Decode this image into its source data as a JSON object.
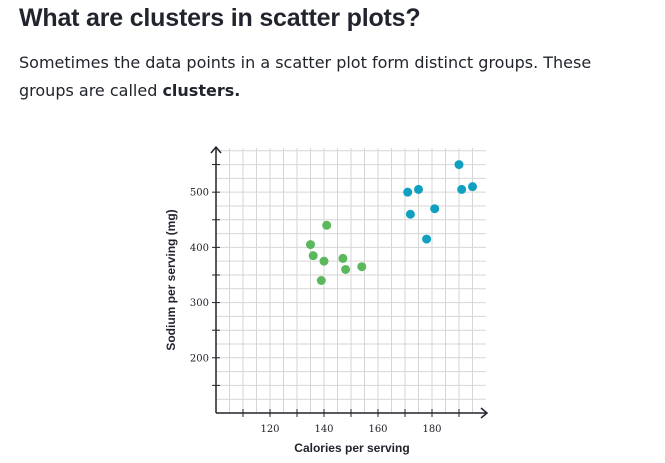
{
  "heading": "What are clusters in scatter plots?",
  "intro": {
    "text": "Sometimes the data points in a scatter plot form distinct groups. These groups are called ",
    "bold": "clusters."
  },
  "colors": {
    "cluster_a": "#5cb85c",
    "cluster_b": "#11a0c2",
    "grid": "#d6d6d6",
    "axis": "#21242c"
  },
  "chart_data": {
    "type": "scatter",
    "xlabel": "Calories per serving",
    "ylabel": "Sodium per serving (mg)",
    "xlim": [
      100,
      200
    ],
    "ylim": [
      100,
      580
    ],
    "x_minor_step": 5,
    "y_minor_step": 25,
    "x_ticks": [
      120,
      140,
      160,
      180
    ],
    "y_ticks": [
      200,
      300,
      400,
      500
    ],
    "grid": true,
    "series": [
      {
        "color_key": "cluster_a",
        "points": [
          {
            "x": 135,
            "y": 405
          },
          {
            "x": 136,
            "y": 385
          },
          {
            "x": 141,
            "y": 440
          },
          {
            "x": 140,
            "y": 375
          },
          {
            "x": 139,
            "y": 340
          },
          {
            "x": 147,
            "y": 380
          },
          {
            "x": 148,
            "y": 360
          },
          {
            "x": 154,
            "y": 365
          }
        ]
      },
      {
        "color_key": "cluster_b",
        "points": [
          {
            "x": 171,
            "y": 500
          },
          {
            "x": 172,
            "y": 460
          },
          {
            "x": 175,
            "y": 505
          },
          {
            "x": 178,
            "y": 415
          },
          {
            "x": 181,
            "y": 470
          },
          {
            "x": 190,
            "y": 550
          },
          {
            "x": 191,
            "y": 505
          },
          {
            "x": 195,
            "y": 510
          }
        ]
      }
    ]
  }
}
